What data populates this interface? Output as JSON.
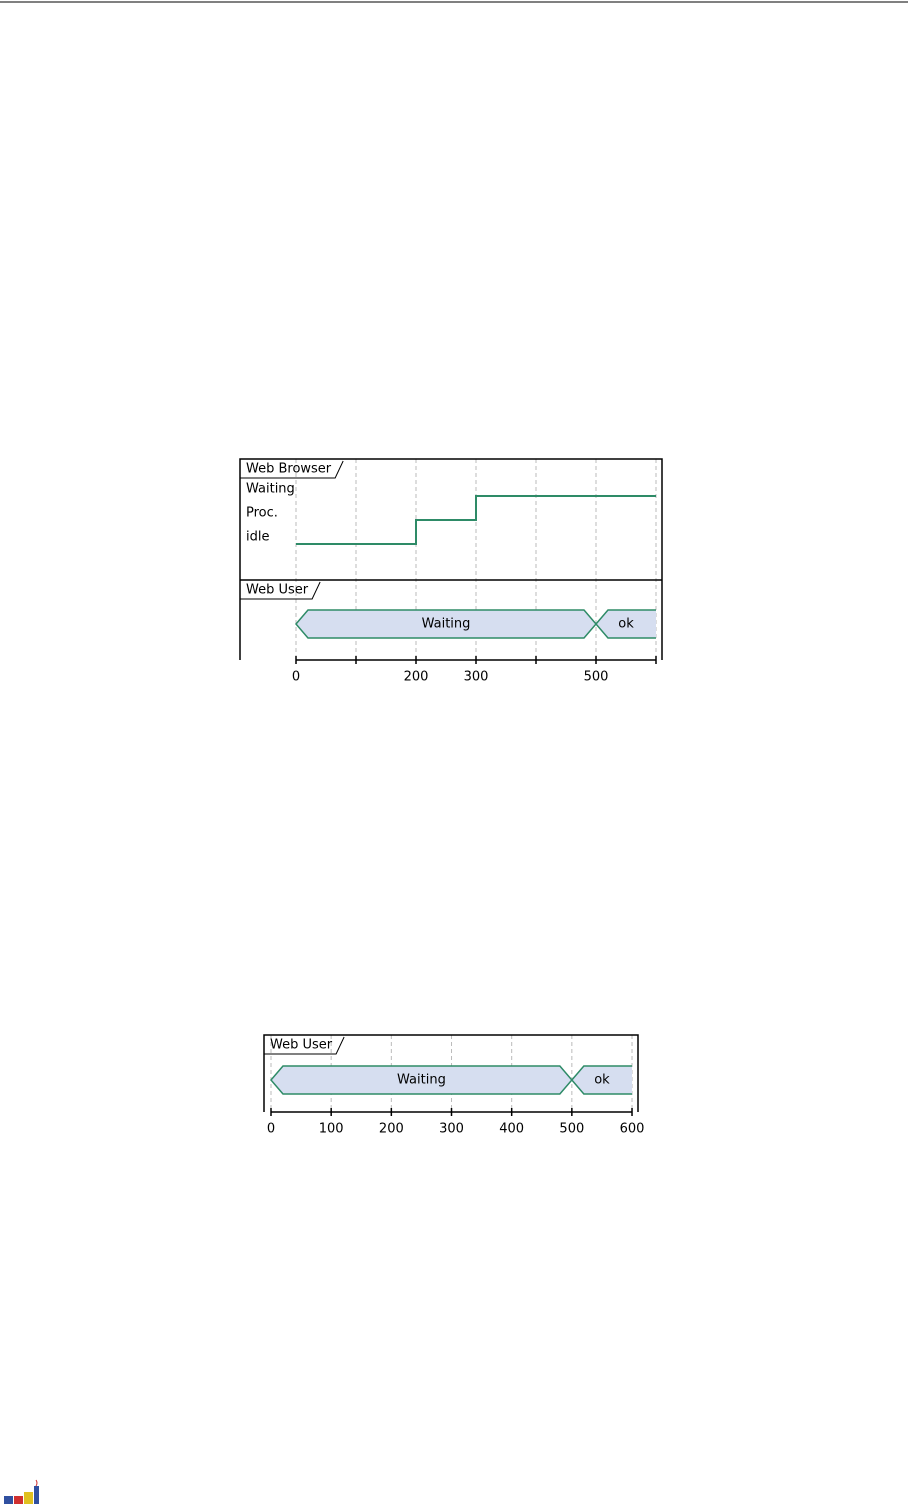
{
  "diagram1": {
    "browser": {
      "name": "Web Browser",
      "states": [
        "Waiting",
        "Proc.",
        "idle"
      ],
      "changes": [
        {
          "at": 0,
          "state": 2
        },
        {
          "at": 200,
          "state": 1
        },
        {
          "at": 300,
          "state": 0
        }
      ]
    },
    "user": {
      "name": "Web User",
      "changes": [
        {
          "at": 0,
          "label": "Waiting"
        },
        {
          "at": 500,
          "label": "ok"
        }
      ]
    },
    "end": 600,
    "grid": [
      0,
      100,
      200,
      300,
      400,
      500,
      600
    ],
    "labels": [
      0,
      200,
      300,
      500
    ]
  },
  "diagram2": {
    "user": {
      "name": "Web User",
      "changes": [
        {
          "at": 0,
          "label": "Waiting"
        },
        {
          "at": 500,
          "label": "ok"
        }
      ]
    },
    "end": 600,
    "grid": [
      0,
      100,
      200,
      300,
      400,
      500,
      600
    ],
    "labels": [
      0,
      100,
      200,
      300,
      400,
      500,
      600
    ]
  }
}
